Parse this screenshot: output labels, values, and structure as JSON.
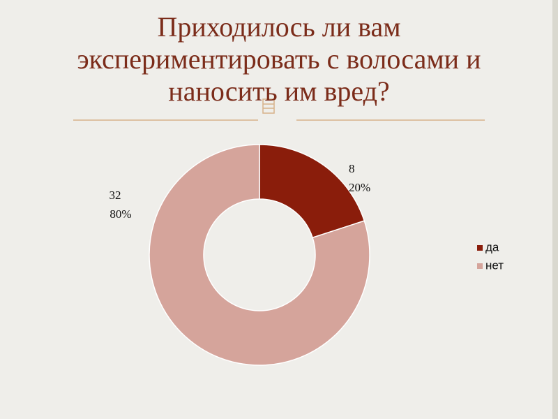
{
  "chart_data": {
    "type": "donut",
    "title": "Приходилось ли вам экспериментировать с волосами и наносить им вред?",
    "categories": [
      "да",
      "нет"
    ],
    "values": [
      8,
      32
    ],
    "percent_values": [
      20,
      80
    ],
    "percent_labels": [
      "20%",
      "80%"
    ],
    "colors": [
      "#8a1d0b",
      "#d5a49b"
    ],
    "legend": "right"
  }
}
